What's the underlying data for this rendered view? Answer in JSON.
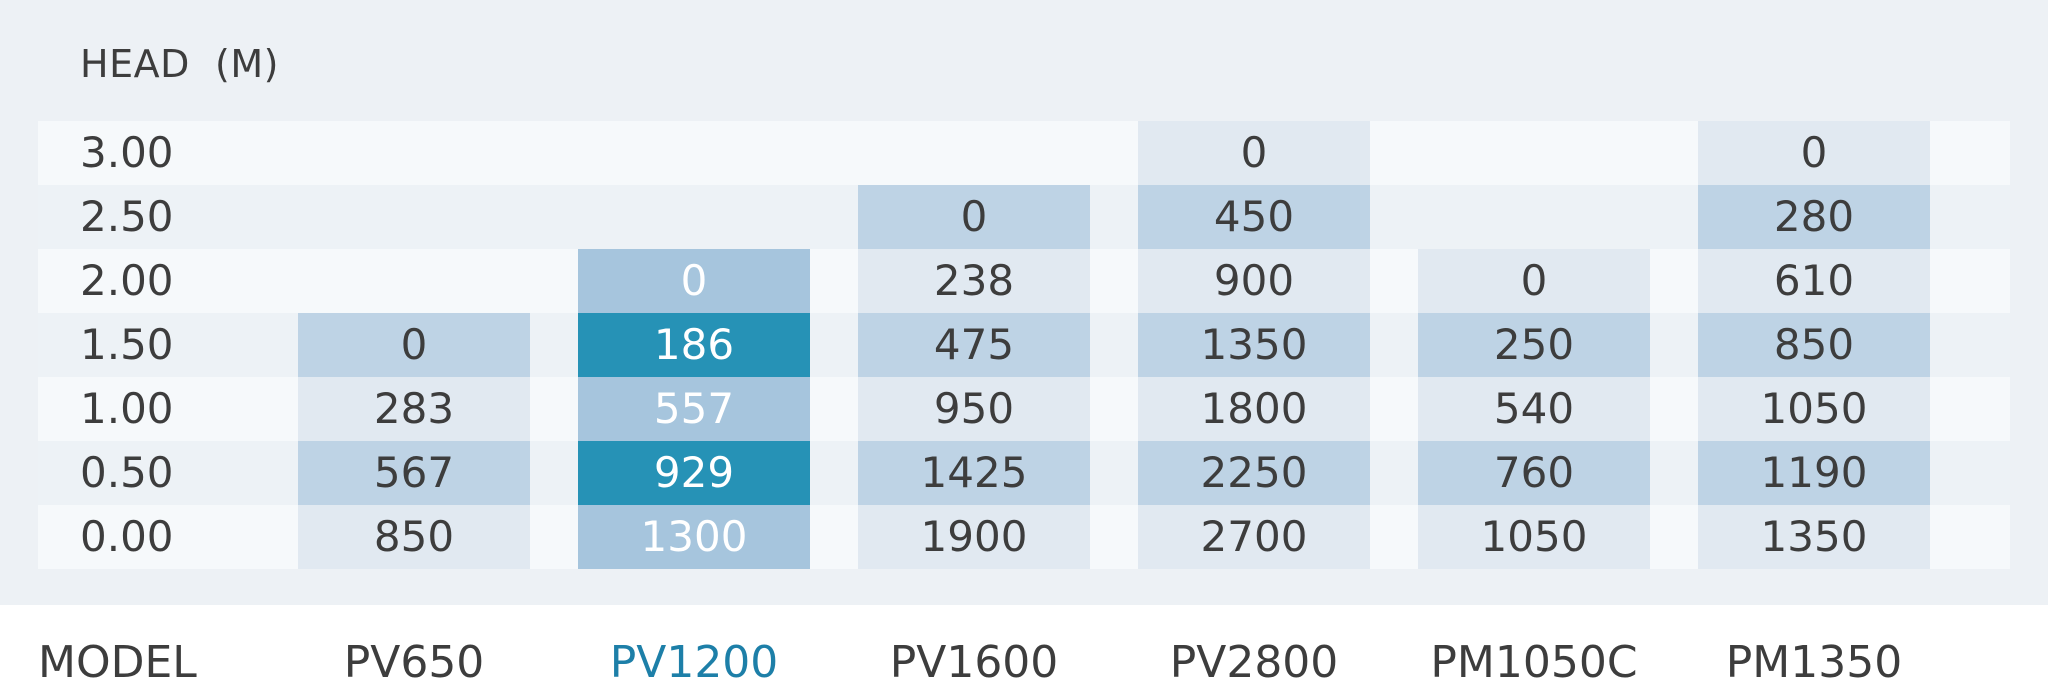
{
  "title": "HEAD  (M)",
  "footer_label": "MODEL",
  "models": [
    "PV650",
    "PV1200",
    "PV1600",
    "PV2800",
    "PM1050C",
    "PM1350"
  ],
  "rows": [
    {
      "head": "3.00",
      "values": [
        "",
        "",
        "",
        "0",
        "",
        "0"
      ]
    },
    {
      "head": "2.50",
      "values": [
        "",
        "",
        "0",
        "450",
        "",
        "280"
      ]
    },
    {
      "head": "2.00",
      "values": [
        "",
        "0",
        "238",
        "900",
        "0",
        "610"
      ]
    },
    {
      "head": "1.50",
      "values": [
        "0",
        "186",
        "475",
        "1350",
        "250",
        "850"
      ]
    },
    {
      "head": "1.00",
      "values": [
        "283",
        "557",
        "950",
        "1800",
        "540",
        "1050"
      ]
    },
    {
      "head": "0.50",
      "values": [
        "567",
        "929",
        "1425",
        "2250",
        "760",
        "1190"
      ]
    },
    {
      "head": "0.00",
      "values": [
        "850",
        "1300",
        "1900",
        "2700",
        "1050",
        "1350"
      ]
    }
  ],
  "colors": {
    "panel": "#edf1f5",
    "band_light": "#f6f9fb",
    "band_mid": "#edf2f6",
    "cell_pale": "#e1e9f1",
    "cell_blue": "#bed3e5",
    "highlight_light": "#a6c5dd",
    "highlight_dark": "#2692b6",
    "text": "#3d3d3d",
    "active_model": "#1d7fa8"
  }
}
